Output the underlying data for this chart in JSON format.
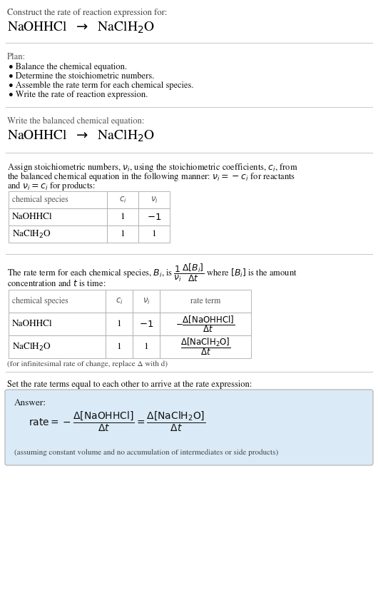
{
  "bg_color": "#ffffff",
  "light_blue_bg": "#daeaf7",
  "section1_title": "Construct the rate of reaction expression for:",
  "section2_title": "Plan:",
  "section2_bullets": [
    "• Balance the chemical equation.",
    "• Determine the stoichiometric numbers.",
    "• Assemble the rate term for each chemical species.",
    "• Write the rate of reaction expression."
  ],
  "section3_title": "Write the balanced chemical equation:",
  "section6_title": "Set the rate terms equal to each other to arrive at the rate expression:",
  "answer_label": "Answer:",
  "answer_note": "(assuming constant volume and no accumulation of intermediates or side products)",
  "infinitesimal_note": "(for infinitesimal rate of change, replace Δ with d)"
}
